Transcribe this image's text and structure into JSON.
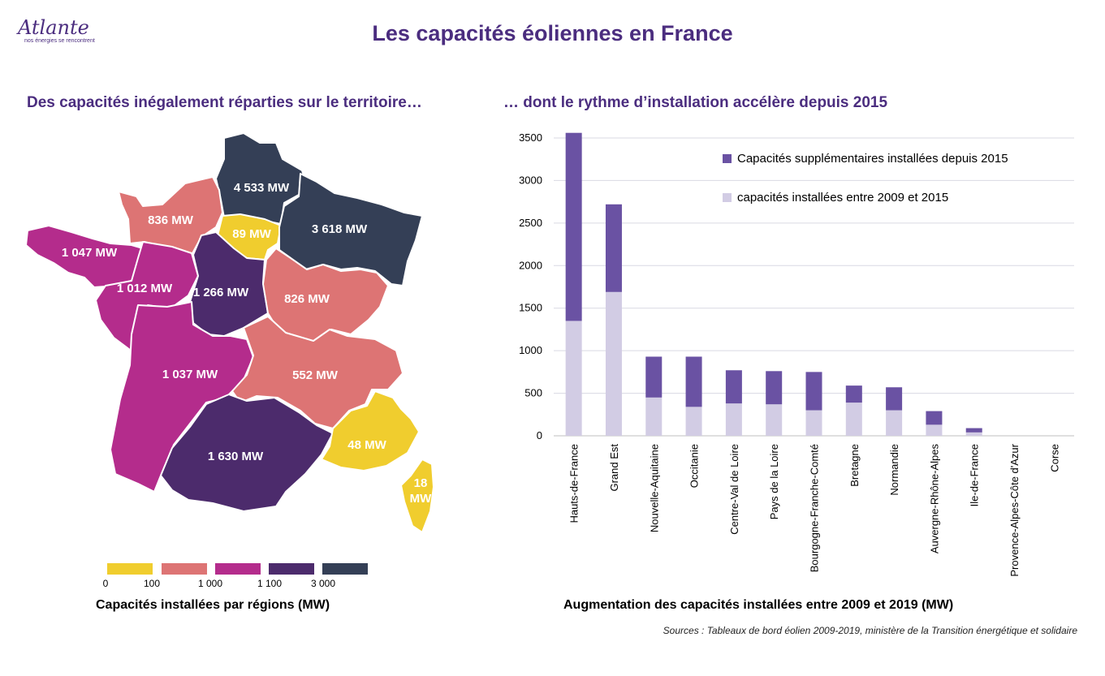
{
  "logo": {
    "name": "Atlante",
    "tagline": "nos énergies se rencontrent"
  },
  "title": "Les capacités éoliennes en France",
  "left": {
    "subtitle": "Des capacités inégalement réparties sur le territoire…",
    "caption": "Capacités installées par régions (MW)",
    "legend": {
      "colors": [
        "#f0cd2e",
        "#dd7474",
        "#b42c8c",
        "#4c2b6c",
        "#343f56"
      ],
      "ticks": [
        "0",
        "100",
        "1 000",
        "1 100",
        "3 000"
      ]
    },
    "regions": [
      {
        "label": "4 533 MW",
        "value": 4533,
        "color": "#343f56"
      },
      {
        "label": "836 MW",
        "value": 836,
        "color": "#dd7474"
      },
      {
        "label": "89 MW",
        "value": 89,
        "color": "#f0cd2e"
      },
      {
        "label": "3 618 MW",
        "value": 3618,
        "color": "#343f56"
      },
      {
        "label": "1 047 MW",
        "value": 1047,
        "color": "#b42c8c"
      },
      {
        "label": "1 012 MW",
        "value": 1012,
        "color": "#b42c8c"
      },
      {
        "label": "1 266 MW",
        "value": 1266,
        "color": "#4c2b6c"
      },
      {
        "label": "826 MW",
        "value": 826,
        "color": "#dd7474"
      },
      {
        "label": "1 037 MW",
        "value": 1037,
        "color": "#b42c8c"
      },
      {
        "label": "552 MW",
        "value": 552,
        "color": "#dd7474"
      },
      {
        "label": "1 630 MW",
        "value": 1630,
        "color": "#4c2b6c"
      },
      {
        "label": "48 MW",
        "value": 48,
        "color": "#f0cd2e"
      },
      {
        "label": "18 MW",
        "value": 18,
        "color": "#f0cd2e"
      }
    ]
  },
  "right": {
    "subtitle": "… dont le rythme d’installation accélère depuis 2015",
    "caption": "Augmentation des capacités installées entre 2009 et 2019 (MW)"
  },
  "source": "Sources : Tableaux de bord éolien 2009-2019, ministère de la Transition énergétique et solidaire",
  "chart_data": {
    "type": "bar",
    "stacked": true,
    "categories": [
      "Hauts-de-France",
      "Grand Est",
      "Nouvelle-Aquitaine",
      "Occitanie",
      "Centre-Val de Loire",
      "Pays de la Loire",
      "Bourgogne-Franche-Comté",
      "Bretagne",
      "Normandie",
      "Auvergne-Rhône-Alpes",
      "Ile-de-France",
      "Provence-Alpes-Côte d'Azur",
      "Corse"
    ],
    "series": [
      {
        "name": "capacités  installées entre 2009 et 2015",
        "color": "#d2cce4",
        "values": [
          1350,
          1690,
          450,
          340,
          380,
          370,
          300,
          390,
          300,
          130,
          40,
          0,
          0
        ]
      },
      {
        "name": "Capacités supplémentaires installées depuis 2015",
        "color": "#6a52a3",
        "values": [
          2210,
          1030,
          480,
          590,
          390,
          390,
          450,
          200,
          270,
          160,
          50,
          0,
          0
        ]
      }
    ],
    "ylim": [
      0,
      3500
    ],
    "yticks": [
      0,
      500,
      1000,
      1500,
      2000,
      2500,
      3000,
      3500
    ],
    "grid": true,
    "legend_position": "top-right"
  }
}
